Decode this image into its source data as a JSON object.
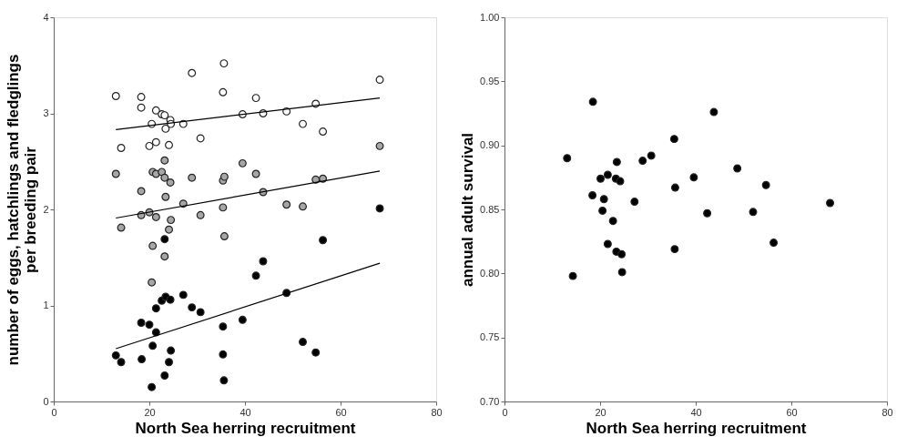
{
  "chart_data": [
    {
      "type": "scatter",
      "xlabel": "North Sea herring recruitment",
      "ylabel": "number of eggs, hatchlings and fledglings\nper breeding pair",
      "xlim": [
        0,
        80
      ],
      "xticks": [
        0,
        20,
        40,
        60,
        80
      ],
      "ylim": [
        0,
        4
      ],
      "yticks": [
        0,
        1,
        2,
        3,
        4
      ],
      "grid": false,
      "marker": "circle",
      "series": [
        {
          "color": "#ffffff",
          "x": [
            13.0,
            14.1,
            18.3,
            18.3,
            20.0,
            20.5,
            21.4,
            21.4,
            22.6,
            23.2,
            23.4,
            24.1,
            24.4,
            24.5,
            27.1,
            28.9,
            30.7,
            35.4,
            35.6,
            39.5,
            42.3,
            43.8,
            48.7,
            52.1,
            54.8,
            56.3,
            68.2
          ],
          "values": [
            3.18,
            2.64,
            3.17,
            3.06,
            2.66,
            2.89,
            3.03,
            2.7,
            2.99,
            2.98,
            2.84,
            2.67,
            2.93,
            2.89,
            2.89,
            3.42,
            2.74,
            3.22,
            3.52,
            2.99,
            3.16,
            3.0,
            3.02,
            2.89,
            3.1,
            2.81,
            3.35
          ]
        },
        {
          "color": "#a6a6a6",
          "x": [
            13.0,
            14.1,
            18.3,
            18.3,
            20.0,
            20.7,
            21.4,
            21.4,
            22.6,
            23.2,
            23.2,
            23.4,
            24.1,
            24.4,
            24.5,
            27.1,
            28.9,
            30.7,
            35.4,
            35.7,
            35.4,
            35.7,
            39.5,
            42.3,
            43.8,
            48.7,
            52.1,
            54.8,
            56.3,
            20.7,
            23.2,
            20.5,
            68.2
          ],
          "values": [
            2.37,
            1.81,
            2.19,
            1.94,
            1.97,
            2.39,
            2.37,
            1.92,
            2.39,
            2.51,
            2.33,
            2.13,
            1.79,
            2.28,
            1.89,
            2.06,
            2.33,
            1.94,
            2.3,
            2.34,
            2.02,
            1.72,
            2.48,
            2.37,
            2.18,
            2.05,
            2.03,
            2.31,
            2.32,
            1.62,
            1.51,
            1.24,
            2.66
          ]
        },
        {
          "color": "#000000",
          "x": [
            13.0,
            14.1,
            18.3,
            18.4,
            20.0,
            20.5,
            20.7,
            21.4,
            21.4,
            22.6,
            23.2,
            23.2,
            23.4,
            24.1,
            24.4,
            24.5,
            27.1,
            28.9,
            30.7,
            35.4,
            35.4,
            35.6,
            39.5,
            42.3,
            43.8,
            48.7,
            52.1,
            54.8,
            56.3,
            68.2
          ],
          "values": [
            0.48,
            0.41,
            0.82,
            0.44,
            0.8,
            0.15,
            0.58,
            0.97,
            0.72,
            1.05,
            1.69,
            0.27,
            1.09,
            0.41,
            1.06,
            0.53,
            1.11,
            0.98,
            0.93,
            0.78,
            0.49,
            0.22,
            0.85,
            1.31,
            1.46,
            1.13,
            0.62,
            0.51,
            1.68,
            2.01
          ]
        },
        {
          "type": "line",
          "marker": "none",
          "color": "#000000",
          "x": [
            13.0,
            68.2
          ],
          "values": [
            2.83,
            3.16
          ]
        },
        {
          "type": "line",
          "marker": "none",
          "color": "#000000",
          "x": [
            13.0,
            68.2
          ],
          "values": [
            1.91,
            2.4
          ]
        },
        {
          "type": "line",
          "marker": "none",
          "color": "#000000",
          "x": [
            13.0,
            68.2
          ],
          "values": [
            0.55,
            1.44
          ]
        }
      ]
    },
    {
      "type": "scatter",
      "xlabel": "North Sea herring recruitment",
      "ylabel": "annual adult survival",
      "xlim": [
        0,
        80
      ],
      "xticks": [
        0,
        20,
        40,
        60,
        80
      ],
      "ylim": [
        0.7,
        1.0
      ],
      "yticks": [
        {
          "value": 0.7,
          "label": "0.70"
        },
        {
          "value": 0.75,
          "label": "0.75"
        },
        {
          "value": 0.8,
          "label": "0.80"
        },
        {
          "value": 0.85,
          "label": "0.85"
        },
        {
          "value": 0.9,
          "label": "0.90"
        },
        {
          "value": 0.95,
          "label": "0.95"
        },
        {
          "value": 1.0,
          "label": "1.00"
        }
      ],
      "grid": false,
      "marker": "circle",
      "series": [
        {
          "color": "#000000",
          "x": [
            13.1,
            18.5,
            14.3,
            23.5,
            20.1,
            21.6,
            23.3,
            24.2,
            18.4,
            20.8,
            20.5,
            22.7,
            27.2,
            28.9,
            30.7,
            21.6,
            23.4,
            24.5,
            24.6,
            35.5,
            35.7,
            35.6,
            39.6,
            43.8,
            42.4,
            48.7,
            52.0,
            54.7,
            56.3,
            68.1
          ],
          "values": [
            0.89,
            0.934,
            0.798,
            0.887,
            0.874,
            0.877,
            0.874,
            0.872,
            0.861,
            0.858,
            0.849,
            0.841,
            0.856,
            0.888,
            0.892,
            0.823,
            0.817,
            0.815,
            0.801,
            0.905,
            0.867,
            0.819,
            0.875,
            0.926,
            0.847,
            0.882,
            0.848,
            0.869,
            0.824,
            0.855
          ]
        }
      ]
    }
  ]
}
